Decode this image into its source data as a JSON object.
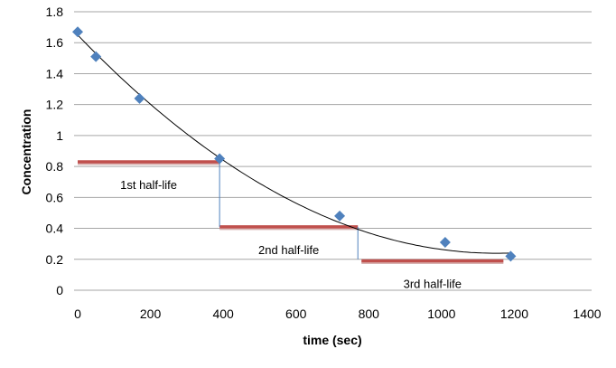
{
  "chart_data": {
    "type": "scatter",
    "title": "",
    "xlabel": "time (sec)",
    "ylabel": "Concentration",
    "xlim": [
      0,
      1400
    ],
    "ylim": [
      0,
      1.8
    ],
    "xticks": [
      0,
      200,
      400,
      600,
      800,
      1000,
      1200,
      1400
    ],
    "yticks": [
      0,
      0.2,
      0.4,
      0.6,
      0.8,
      1,
      1.2,
      1.4,
      1.6,
      1.8
    ],
    "ytick_labels": [
      "0",
      "0.2",
      "0.4",
      "0.6",
      "0.8",
      "1",
      "1.2",
      "1.4",
      "1.6",
      "1.8"
    ],
    "grid": "horizontal",
    "points": [
      {
        "x": 0,
        "y": 1.67
      },
      {
        "x": 50,
        "y": 1.51
      },
      {
        "x": 170,
        "y": 1.24
      },
      {
        "x": 390,
        "y": 0.85
      },
      {
        "x": 720,
        "y": 0.48
      },
      {
        "x": 1010,
        "y": 0.31
      },
      {
        "x": 1190,
        "y": 0.22
      }
    ],
    "trendline": {
      "type": "polynomial",
      "coefficients": [
        1.65,
        -0.00245,
        1.0635e-06
      ],
      "x_range": [
        0,
        1190
      ]
    },
    "half_life_segments": [
      {
        "label": "1st half-life",
        "x0": 0,
        "x1": 390,
        "y": 0.83
      },
      {
        "label": "2nd half-life",
        "x0": 390,
        "x1": 770,
        "y": 0.41
      },
      {
        "label": "3rd half-life",
        "x0": 780,
        "x1": 1170,
        "y": 0.19
      }
    ],
    "drop_lines": [
      {
        "x": 390,
        "y0": 0.83,
        "y1": 0.41
      },
      {
        "x": 770,
        "y0": 0.41,
        "y1": 0.2
      }
    ],
    "colors": {
      "points": "#4f81bd",
      "half_life": "#c0504d",
      "drop_line": "#4f81bd",
      "trendline": "#000000",
      "grid": "#a6a6a6"
    }
  }
}
